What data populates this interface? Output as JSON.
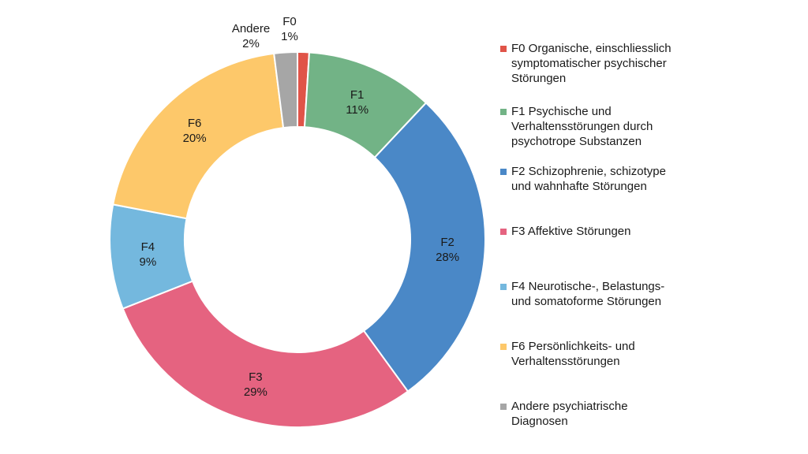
{
  "chart_data": {
    "type": "pie",
    "variant": "donut",
    "legend_position": "right",
    "slices": [
      {
        "code": "F0",
        "value": 1,
        "label_line1": "F0",
        "label_line2": "1%",
        "legend": "F0 Organische, einschliesslich symptomatischer psychischer Störungen",
        "legend_lines": [
          "F0 Organische, einschliesslich",
          "symptomatischer psychischer",
          "Störungen"
        ],
        "color": "#E05448"
      },
      {
        "code": "F1",
        "value": 11,
        "label_line1": "F1",
        "label_line2": "11%",
        "legend": "F1 Psychische und Verhaltensstörungen durch psychotrope Substanzen",
        "legend_lines": [
          "F1 Psychische und",
          "Verhaltensstörungen durch",
          "psychotrope Substanzen"
        ],
        "color": "#72B386"
      },
      {
        "code": "F2",
        "value": 28,
        "label_line1": "F2",
        "label_line2": "28%",
        "legend": "F2 Schizophrenie, schizotype und wahnhafte Störungen",
        "legend_lines": [
          "F2 Schizophrenie, schizotype",
          "und wahnhafte Störungen"
        ],
        "color": "#4A88C7"
      },
      {
        "code": "F3",
        "value": 29,
        "label_line1": "F3",
        "label_line2": "29%",
        "legend": "F3 Affektive Störungen",
        "legend_lines": [
          "F3 Affektive Störungen"
        ],
        "color": "#E56380"
      },
      {
        "code": "F4",
        "value": 9,
        "label_line1": "F4",
        "label_line2": "9%",
        "legend": "F4 Neurotische-, Belastungs- und somatoforme Störungen",
        "legend_lines": [
          "F4 Neurotische-, Belastungs-",
          "und somatoforme Störungen"
        ],
        "color": "#74B8DE"
      },
      {
        "code": "F6",
        "value": 20,
        "label_line1": "F6",
        "label_line2": "20%",
        "legend": "F6 Persönlichkeits- und Verhaltensstörungen",
        "legend_lines": [
          "F6 Persönlichkeits- und",
          "Verhaltensstörungen"
        ],
        "color": "#FDC86A"
      },
      {
        "code": "Andere",
        "value": 2,
        "label_line1": "Andere",
        "label_line2": "2%",
        "legend": "Andere psychiatrische Diagnosen",
        "legend_lines": [
          "Andere psychiatrische",
          "Diagnosen"
        ],
        "color": "#A6A6A6"
      }
    ]
  }
}
